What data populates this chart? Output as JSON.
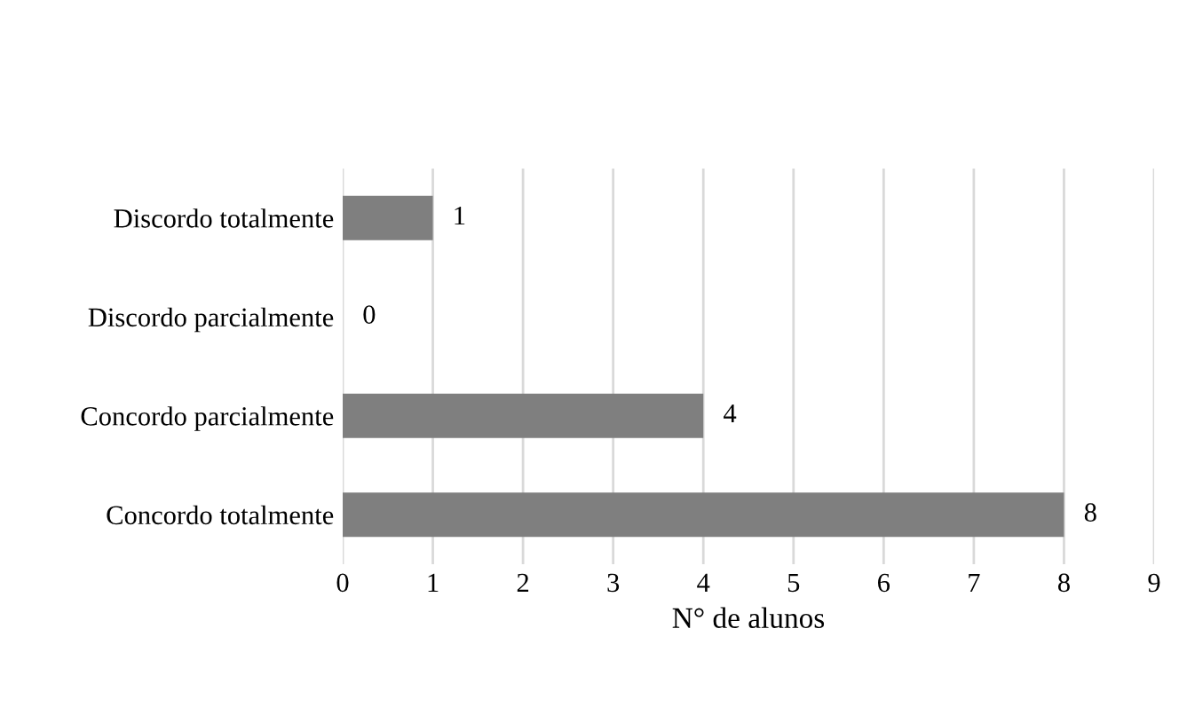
{
  "chart_data": {
    "type": "bar",
    "orientation": "horizontal",
    "xlabel": "N° de alunos",
    "categories": [
      "Discordo totalmente",
      "Discordo parcialmente",
      "Concordo parcialmente",
      "Concordo totalmente"
    ],
    "values": [
      1,
      0,
      4,
      8
    ],
    "color": "#7f7f7f",
    "xlim": [
      0,
      9
    ],
    "xticks": [
      0,
      1,
      2,
      3,
      4,
      5,
      6,
      7,
      8,
      9
    ],
    "grid": "x",
    "data_labels": true
  }
}
